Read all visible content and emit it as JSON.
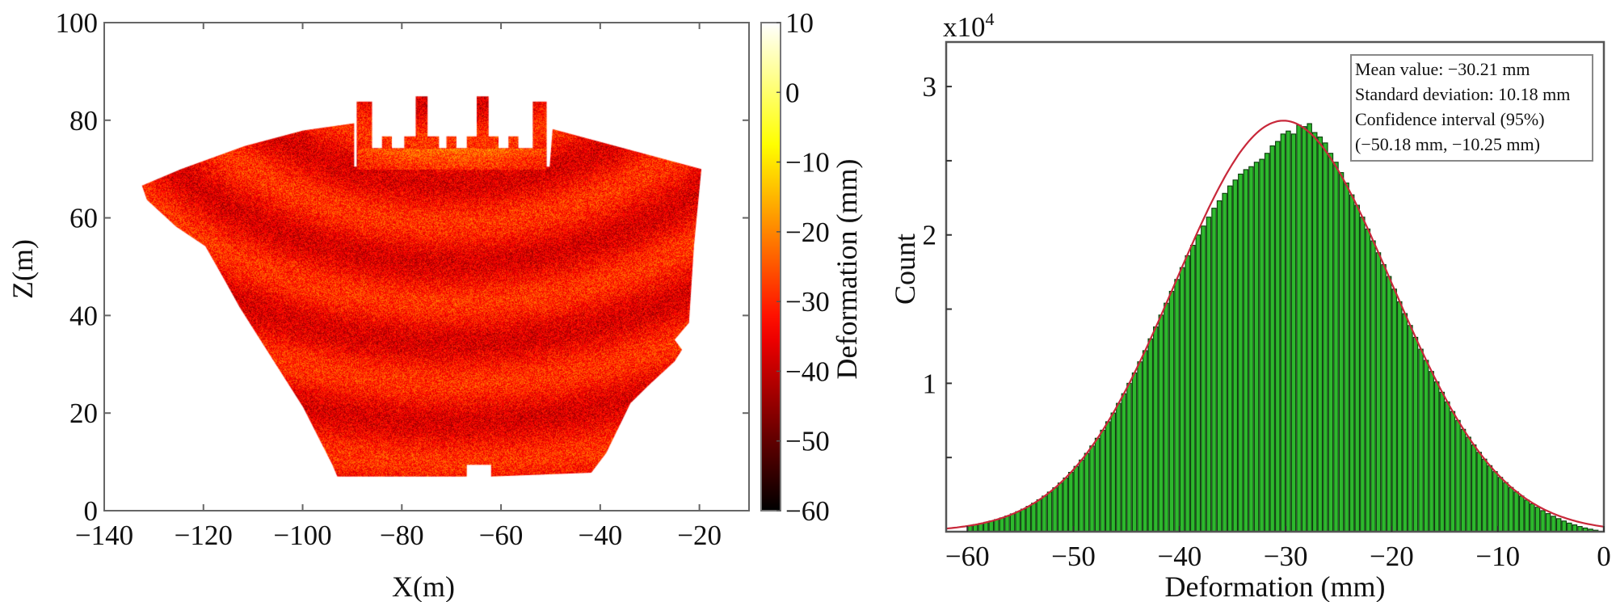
{
  "chart_data": [
    {
      "type": "heatmap",
      "xlabel": "X(m)",
      "ylabel": "Z(m)",
      "xlim": [
        -140,
        -10
      ],
      "ylim": [
        0,
        100
      ],
      "xticks": [
        -140,
        -120,
        -100,
        -80,
        -60,
        -40,
        -20
      ],
      "yticks": [
        0,
        20,
        40,
        60,
        80,
        100
      ],
      "colormap": "hot",
      "colorbar": {
        "label": "Deformation (mm)",
        "range": [
          -60,
          10
        ],
        "ticks": [
          10,
          0,
          -10,
          -20,
          -30,
          -40,
          -50,
          -60
        ]
      },
      "typical_value_mm": -33,
      "region_outline": [
        [
          [
            -132.4,
            66.6
          ],
          [
            -124.5,
            70
          ],
          [
            -111.7,
            74.7
          ],
          [
            -99.9,
            77.9
          ],
          [
            -89.6,
            79.4
          ],
          [
            -89.6,
            70.5
          ],
          [
            -50.2,
            70.5
          ],
          [
            -49.6,
            78.2
          ],
          [
            -19.6,
            70.0
          ],
          [
            -21.1,
            54.2
          ],
          [
            -22.1,
            38.5
          ],
          [
            -25,
            35
          ],
          [
            -23.5,
            33
          ],
          [
            -25,
            30.6
          ],
          [
            -30,
            25.9
          ],
          [
            -33.9,
            22
          ],
          [
            -38.8,
            11.8
          ],
          [
            -41.8,
            7.8
          ],
          [
            -62,
            7.0
          ],
          [
            -62,
            9.4
          ],
          [
            -66.9,
            9.4
          ],
          [
            -66.9,
            7.0
          ],
          [
            -93,
            7.0
          ],
          [
            -94,
            9.4
          ],
          [
            -99.9,
            21.2
          ],
          [
            -107.8,
            33.8
          ],
          [
            -112.7,
            41.7
          ],
          [
            -115.7,
            47.2
          ],
          [
            -119.6,
            54.2
          ],
          [
            -125.5,
            58.2
          ],
          [
            -131.4,
            63.7
          ]
        ],
        [
          [
            -89.1,
            70.0
          ],
          [
            -89.1,
            83.8
          ],
          [
            -86.0,
            83.8
          ],
          [
            -86.0,
            74.3
          ],
          [
            -84,
            74.3
          ],
          [
            -84,
            76.7
          ],
          [
            -82,
            76.7
          ],
          [
            -82,
            74.3
          ],
          [
            -79.5,
            74.3
          ],
          [
            -79.5,
            76.7
          ],
          [
            -77.2,
            76.7
          ],
          [
            -77.2,
            84.9
          ],
          [
            -74.8,
            84.9
          ],
          [
            -74.8,
            76.7
          ],
          [
            -72.5,
            76.7
          ],
          [
            -72.5,
            74.3
          ],
          [
            -71,
            74.3
          ],
          [
            -71,
            76.7
          ],
          [
            -69,
            76.7
          ],
          [
            -69,
            74.3
          ],
          [
            -66.9,
            74.3
          ],
          [
            -66.9,
            76.7
          ],
          [
            -64.9,
            76.7
          ],
          [
            -64.9,
            84.9
          ],
          [
            -62.5,
            84.9
          ],
          [
            -62.5,
            76.7
          ],
          [
            -60.5,
            76.7
          ],
          [
            -60.5,
            74.3
          ],
          [
            -58.5,
            74.3
          ],
          [
            -58.5,
            76.7
          ],
          [
            -56.5,
            76.7
          ],
          [
            -56.5,
            74.3
          ],
          [
            -53.6,
            74.3
          ],
          [
            -53.6,
            83.8
          ],
          [
            -50.8,
            83.8
          ],
          [
            -50.8,
            70.0
          ]
        ]
      ]
    },
    {
      "type": "bar",
      "subtype": "histogram",
      "xlabel": "Deformation (mm)",
      "ylabel": "Count",
      "y_multiplier": "x10",
      "y_multiplier_exp": "4",
      "xlim": [
        -62,
        0
      ],
      "ylim": [
        0,
        3.3
      ],
      "xticks": [
        -60,
        -50,
        -40,
        -30,
        -20,
        -10,
        0
      ],
      "yticks": [
        1,
        2,
        3
      ],
      "bin_width": 0.5,
      "bin_start": -60,
      "values": [
        0.04,
        0.048,
        0.055,
        0.063,
        0.072,
        0.082,
        0.093,
        0.106,
        0.12,
        0.135,
        0.152,
        0.171,
        0.192,
        0.215,
        0.24,
        0.267,
        0.296,
        0.328,
        0.362,
        0.4,
        0.44,
        0.483,
        0.528,
        0.578,
        0.63,
        0.684,
        0.741,
        0.8,
        0.865,
        0.93,
        1.0,
        1.07,
        1.145,
        1.22,
        1.3,
        1.38,
        1.46,
        1.54,
        1.62,
        1.7,
        1.78,
        1.86,
        1.93,
        2.0,
        2.06,
        2.12,
        2.18,
        2.23,
        2.28,
        2.33,
        2.37,
        2.41,
        2.44,
        2.46,
        2.49,
        2.51,
        2.55,
        2.6,
        2.63,
        2.68,
        2.7,
        2.68,
        2.74,
        2.73,
        2.75,
        2.69,
        2.66,
        2.62,
        2.55,
        2.49,
        2.42,
        2.35,
        2.27,
        2.2,
        2.12,
        2.04,
        1.96,
        1.88,
        1.8,
        1.72,
        1.635,
        1.55,
        1.47,
        1.39,
        1.31,
        1.23,
        1.155,
        1.08,
        1.01,
        0.94,
        0.875,
        0.81,
        0.75,
        0.69,
        0.637,
        0.585,
        0.535,
        0.489,
        0.445,
        0.405,
        0.366,
        0.331,
        0.298,
        0.268,
        0.24,
        0.213,
        0.188,
        0.165,
        0.142,
        0.122,
        0.104,
        0.088,
        0.072,
        0.058,
        0.046,
        0.035,
        0.025,
        0.017,
        0.01
      ],
      "fit": {
        "type": "normal",
        "mean": -30.21,
        "std": 10.18,
        "peak": 2.77
      },
      "colors": {
        "bar": "#2db82d",
        "bar_edge": "#0b3d0b",
        "fit": "#c8283a"
      },
      "legend_placement": "top-right",
      "annotations": [
        "Mean value: −30.21 mm",
        "Standard deviation: 10.18 mm",
        "Confidence interval (95%)",
        "(−50.18 mm, −10.25 mm)"
      ]
    }
  ]
}
